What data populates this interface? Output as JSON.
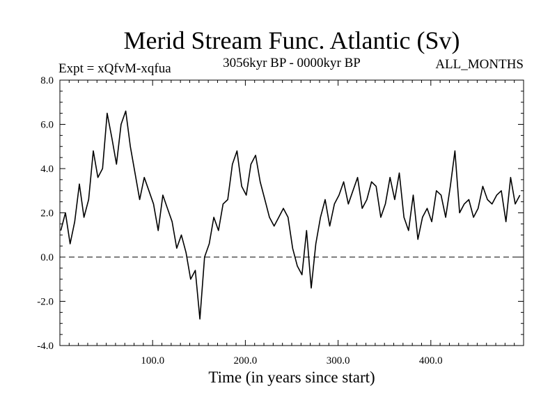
{
  "chart_data": {
    "type": "line",
    "title": "Merid Stream Func. Atlantic (Sv)",
    "subtitle_left": "Expt = xQfvM-xqfua",
    "subtitle_center": "3056kyr BP - 0000kyr BP",
    "subtitle_right": "ALL_MONTHS",
    "xlabel": "Time (in years since start)",
    "ylabel": "",
    "xlim": [
      0,
      500
    ],
    "ylim": [
      -4.0,
      8.0
    ],
    "x_ticks": [
      100,
      200,
      300,
      400
    ],
    "x_tick_labels": [
      "100.0",
      "200.0",
      "300.0",
      "400.0"
    ],
    "y_ticks": [
      -4,
      -2,
      0,
      2,
      4,
      6,
      8
    ],
    "y_tick_labels": [
      "-4.0",
      "-2.0",
      "0.0",
      "2.0",
      "4.0",
      "6.0",
      "8.0"
    ],
    "zero_line": {
      "y": 0,
      "style": "dashed"
    },
    "series": [
      {
        "name": "Merid Stream Func. Atlantic",
        "x_start": 1,
        "x_step": 5,
        "values": [
          1.2,
          2.0,
          0.6,
          1.6,
          3.3,
          1.8,
          2.6,
          4.8,
          3.6,
          4.0,
          6.5,
          5.4,
          4.2,
          6.0,
          6.6,
          5.0,
          3.8,
          2.6,
          3.6,
          3.0,
          2.4,
          1.2,
          2.8,
          2.2,
          1.6,
          0.4,
          1.0,
          0.2,
          -1.0,
          -0.6,
          -2.8,
          0.0,
          0.6,
          1.8,
          1.2,
          2.4,
          2.6,
          4.2,
          4.8,
          3.2,
          2.8,
          4.2,
          4.6,
          3.4,
          2.6,
          1.8,
          1.4,
          1.8,
          2.2,
          1.8,
          0.4,
          -0.4,
          -0.8,
          1.2,
          -1.4,
          0.6,
          1.8,
          2.6,
          1.4,
          2.4,
          2.8,
          3.4,
          2.4,
          3.0,
          3.6,
          2.2,
          2.6,
          3.4,
          3.2,
          1.8,
          2.4,
          3.6,
          2.6,
          3.8,
          1.8,
          1.2,
          2.8,
          0.8,
          1.8,
          2.2,
          1.6,
          3.0,
          2.8,
          1.8,
          3.2,
          4.8,
          2.0,
          2.4,
          2.6,
          1.8,
          2.2,
          3.2,
          2.6,
          2.4,
          2.8,
          3.0,
          1.6,
          3.6,
          2.4,
          2.8
        ]
      }
    ],
    "grid": false
  }
}
